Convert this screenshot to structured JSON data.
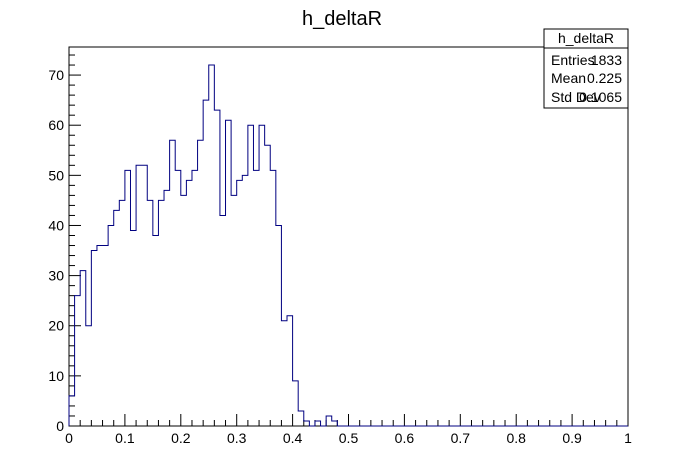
{
  "chart_data": {
    "type": "bar",
    "title": "h_deltaR",
    "xlabel": "",
    "ylabel": "",
    "xlim": [
      0,
      1
    ],
    "ylim": [
      0,
      75.6
    ],
    "bin_width": 0.01,
    "x_ticks": [
      0,
      0.1,
      0.2,
      0.3,
      0.4,
      0.5,
      0.6,
      0.7,
      0.8,
      0.9,
      1
    ],
    "x_tick_labels": [
      "0",
      "0.1",
      "0.2",
      "0.3",
      "0.4",
      "0.5",
      "0.6",
      "0.7",
      "0.8",
      "0.9",
      "1"
    ],
    "y_ticks": [
      0,
      10,
      20,
      30,
      40,
      50,
      60,
      70
    ],
    "y_tick_labels": [
      "0",
      "10",
      "20",
      "30",
      "40",
      "50",
      "60",
      "70"
    ],
    "grid": false,
    "line_color": "#000080",
    "values": [
      6,
      26,
      31,
      20,
      35,
      36,
      36,
      40,
      43,
      45,
      51,
      39,
      52,
      52,
      45,
      38,
      45,
      47,
      57,
      51,
      46,
      49,
      51,
      57,
      65,
      72,
      63,
      42,
      61,
      46,
      49,
      50,
      60,
      51,
      60,
      56,
      51,
      40,
      21,
      22,
      9,
      3,
      1,
      0,
      1,
      0,
      2,
      1,
      0,
      0,
      0,
      0,
      0,
      0,
      0,
      0,
      0,
      0,
      0,
      0,
      0,
      0,
      0,
      0,
      0,
      0,
      0,
      0,
      0,
      0,
      0,
      0,
      0,
      0,
      0,
      0,
      0,
      0,
      0,
      0,
      0,
      0,
      0,
      0,
      0,
      0,
      0,
      0,
      0,
      0,
      0,
      0,
      0,
      0,
      0,
      0,
      0,
      0,
      0,
      0
    ],
    "stats_box": {
      "name": "h_deltaR",
      "rows": [
        {
          "label": "Entries",
          "value": "1833"
        },
        {
          "label": "Mean",
          "value": "0.225"
        },
        {
          "label": "Std Dev",
          "value": "0.1065"
        }
      ],
      "placement": "top-right"
    }
  }
}
